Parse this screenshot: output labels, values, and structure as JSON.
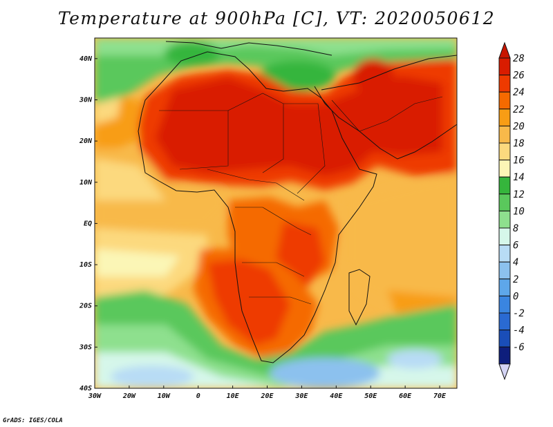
{
  "title": "Temperature at 900hPa [C], VT: 2020050612",
  "credit": "GrADS: IGES/COLA",
  "map": {
    "lon_range": [
      -30,
      75
    ],
    "lat_range": [
      -40,
      45
    ],
    "lon_ticks": [
      "30W",
      "20W",
      "10W",
      "0",
      "10E",
      "20E",
      "30E",
      "40E",
      "50E",
      "60E",
      "70E"
    ],
    "lat_ticks": [
      "40N",
      "30N",
      "20N",
      "10N",
      "EQ",
      "10S",
      "20S",
      "30S",
      "40S"
    ]
  },
  "colorbar": {
    "labels": [
      "28",
      "26",
      "24",
      "22",
      "20",
      "18",
      "16",
      "14",
      "12",
      "10",
      "8",
      "6",
      "4",
      "2",
      "0",
      "-2",
      "-4",
      "-6"
    ],
    "colors": [
      "#d91c00",
      "#ee3a00",
      "#f56a00",
      "#f89d15",
      "#f8b94a",
      "#fcd97e",
      "#fbf6b6",
      "#35b53c",
      "#5ac85c",
      "#8ee08e",
      "#d6f7ea",
      "#b8dcf5",
      "#8cc1ee",
      "#5ea7ea",
      "#3a85e0",
      "#2a6ad2",
      "#1a4eb8",
      "#0e1e7c"
    ],
    "top_color": "#c81600",
    "bottom_color": "#d4d4f4"
  }
}
